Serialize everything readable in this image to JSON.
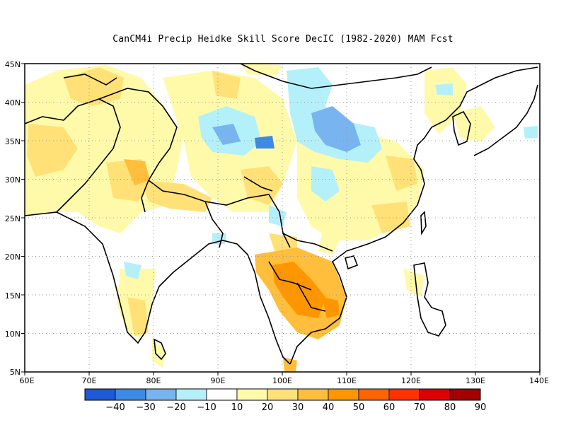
{
  "title": "CanCM4i Precip Heidke Skill Score DecIC (1982-2020) MAM Fcst",
  "map": {
    "lon_range": [
      60,
      140
    ],
    "lat_range": [
      5,
      45
    ],
    "lon_ticks": [
      "60E",
      "70E",
      "80E",
      "90E",
      "100E",
      "110E",
      "120E",
      "130E",
      "140E"
    ],
    "lat_ticks": [
      "45N",
      "40N",
      "35N",
      "30N",
      "25N",
      "20N",
      "15N",
      "10N",
      "5N"
    ]
  },
  "colorbar": {
    "colors": [
      "#1e5ad8",
      "#3c8ae6",
      "#78b4f0",
      "#b4f0fa",
      "#ffffff",
      "#fffaaa",
      "#ffe178",
      "#ffbe3c",
      "#ff9600",
      "#ff6400",
      "#ff3200",
      "#dc0000",
      "#a50000"
    ],
    "labels": [
      "-40",
      "-30",
      "-20",
      "-10",
      "10",
      "20",
      "30",
      "40",
      "50",
      "60",
      "70",
      "80",
      "90"
    ]
  },
  "field_colors": {
    "light_yellow": "#fffaaa",
    "yellow": "#ffe178",
    "orange": "#ffbe3c",
    "dark_orange": "#ff9600",
    "light_blue": "#b4f0fa",
    "mid_blue": "#78b4f0",
    "blue": "#3c8ae6"
  }
}
